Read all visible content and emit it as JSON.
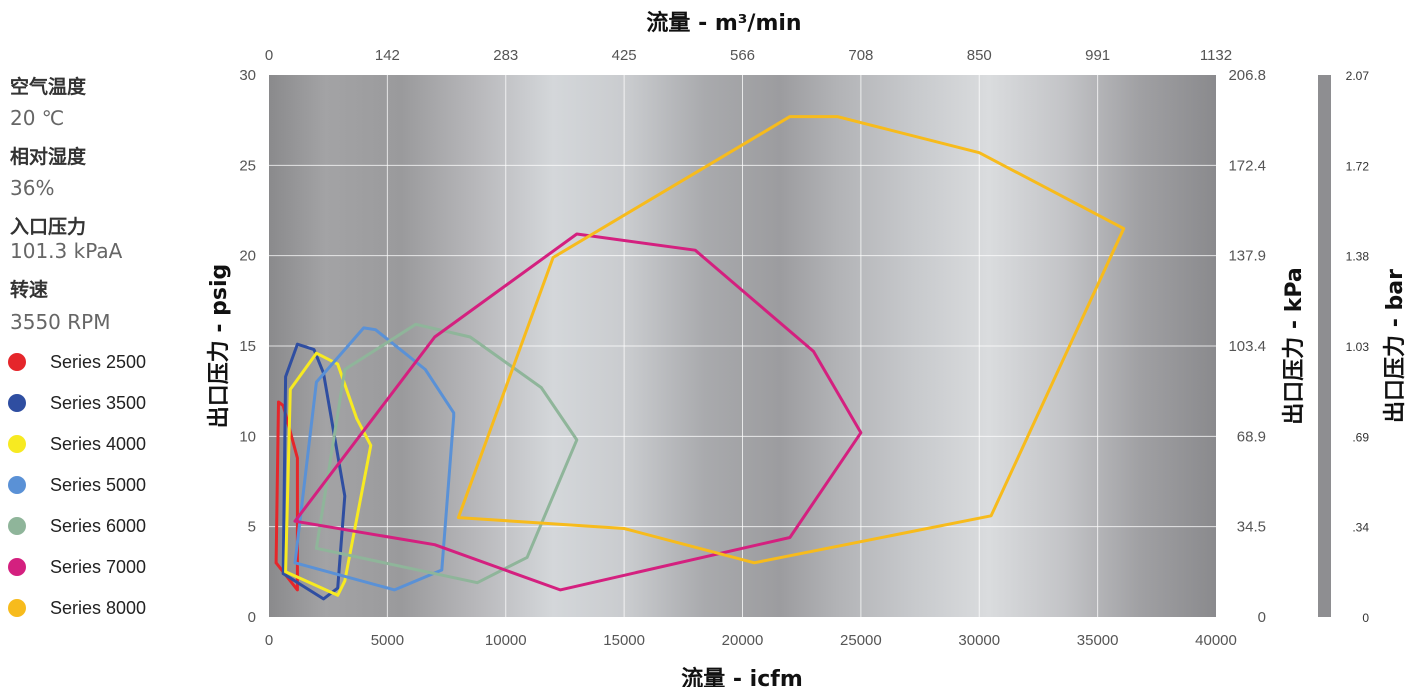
{
  "conditions": [
    {
      "label": "空气温度",
      "value": "20 ℃"
    },
    {
      "label": "相对湿度",
      "value": "36%"
    },
    {
      "label": "入口压力",
      "value": "101.3 kPaA"
    },
    {
      "label": "转速",
      "value": "3550 RPM"
    }
  ],
  "colors": {
    "Series 2500": "#e5262b",
    "Series 3500": "#2f4ea1",
    "Series 4000": "#f7ea21",
    "Series 5000": "#5a91d6",
    "Series 6000": "#8fb59a",
    "Series 7000": "#d4207f",
    "Series 8000": "#f7bb1c"
  },
  "chart_data": {
    "type": "line",
    "title": "",
    "xlabel": "流量 - icfm",
    "ylabel": "出口压力 - psig",
    "xlim": [
      0,
      40000
    ],
    "ylim": [
      0,
      30
    ],
    "x_ticks": [
      "0",
      "5000",
      "10000",
      "15000",
      "20000",
      "25000",
      "30000",
      "35000",
      "40000"
    ],
    "y_ticks": [
      "0",
      "5",
      "10",
      "15",
      "20",
      "25",
      "30"
    ],
    "top_axis": {
      "label": "流量 - m³/min",
      "ticks": [
        "0",
        "142",
        "283",
        "425",
        "566",
        "708",
        "850",
        "991",
        "1132"
      ]
    },
    "right_axis": {
      "label": "出口压力 - kPa",
      "ticks": [
        "0",
        "34.5",
        "68.9",
        "103.4",
        "137.9",
        "172.4",
        "206.8"
      ]
    },
    "far_right_axis": {
      "label": "出口压力 - bar",
      "ticks": [
        "0",
        ".34",
        ".69",
        "1.03",
        "1.38",
        "1.72",
        "2.07"
      ]
    },
    "grid": true,
    "legend_position": "left",
    "series": [
      {
        "name": "Series 2500",
        "points": [
          [
            300,
            3
          ],
          [
            400,
            11.9
          ],
          [
            600,
            11.7
          ],
          [
            1200,
            8.8
          ],
          [
            1200,
            1.5
          ],
          [
            300,
            3
          ]
        ]
      },
      {
        "name": "Series 3500",
        "points": [
          [
            600,
            2.4
          ],
          [
            700,
            13.3
          ],
          [
            1200,
            15.1
          ],
          [
            1900,
            14.8
          ],
          [
            2300,
            13.5
          ],
          [
            3200,
            6.7
          ],
          [
            2900,
            1.6
          ],
          [
            2300,
            1.0
          ],
          [
            600,
            2.4
          ]
        ]
      },
      {
        "name": "Series 4000",
        "points": [
          [
            700,
            2.5
          ],
          [
            900,
            12.6
          ],
          [
            2000,
            14.6
          ],
          [
            2900,
            14.0
          ],
          [
            3700,
            11.0
          ],
          [
            4300,
            9.5
          ],
          [
            3200,
            2.0
          ],
          [
            2900,
            1.2
          ],
          [
            700,
            2.5
          ]
        ]
      },
      {
        "name": "Series 5000",
        "points": [
          [
            1100,
            3.0
          ],
          [
            2000,
            13.0
          ],
          [
            4000,
            16.0
          ],
          [
            4500,
            15.9
          ],
          [
            6600,
            13.7
          ],
          [
            7800,
            11.3
          ],
          [
            7800,
            11.1
          ],
          [
            7300,
            2.6
          ],
          [
            5300,
            1.5
          ],
          [
            1100,
            3.0
          ]
        ]
      },
      {
        "name": "Series 6000",
        "points": [
          [
            2000,
            3.8
          ],
          [
            3200,
            13.7
          ],
          [
            6200,
            16.2
          ],
          [
            8500,
            15.5
          ],
          [
            11500,
            12.7
          ],
          [
            13000,
            9.8
          ],
          [
            10900,
            3.3
          ],
          [
            8800,
            1.9
          ],
          [
            2000,
            3.8
          ]
        ]
      },
      {
        "name": "Series 7000",
        "points": [
          [
            1100,
            5.3
          ],
          [
            7000,
            15.5
          ],
          [
            13000,
            21.2
          ],
          [
            18000,
            20.3
          ],
          [
            23000,
            14.7
          ],
          [
            25000,
            10.2
          ],
          [
            22000,
            4.4
          ],
          [
            12300,
            1.5
          ],
          [
            7000,
            4.0
          ],
          [
            1100,
            5.3
          ]
        ]
      },
      {
        "name": "Series 8000",
        "points": [
          [
            8000,
            5.5
          ],
          [
            12000,
            19.9
          ],
          [
            22000,
            27.7
          ],
          [
            24000,
            27.7
          ],
          [
            30000,
            25.7
          ],
          [
            36100,
            21.5
          ],
          [
            30500,
            5.6
          ],
          [
            20500,
            3.0
          ],
          [
            15000,
            4.9
          ],
          [
            8000,
            5.5
          ]
        ]
      }
    ]
  }
}
